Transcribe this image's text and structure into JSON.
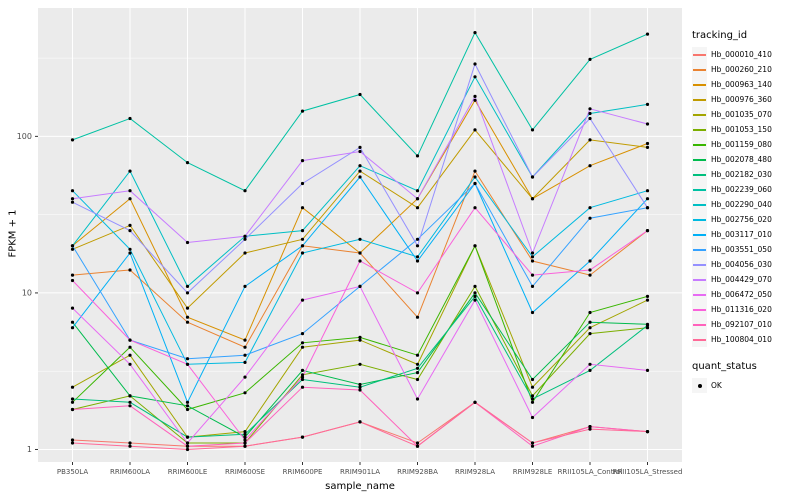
{
  "chart_data": {
    "type": "line",
    "title": "",
    "xlabel": "sample_name",
    "ylabel": "FPKM + 1",
    "y_scale": "log10",
    "y_ticks": [
      1,
      10,
      100
    ],
    "y_minor_ticks": [
      3.1623,
      31.623,
      316.23
    ],
    "ylim_log": [
      -0.08,
      2.82
    ],
    "grid": "on",
    "panel_bg": "#EBEBEB",
    "grid_color": "#FFFFFF",
    "point_color": "#000000",
    "legend_position": "right",
    "legend_titles": {
      "color": "tracking_id",
      "shape": "quant_status"
    },
    "quant_status_items": [
      {
        "label": "OK"
      }
    ],
    "categories": [
      "PB350LA",
      "RRIM600LA",
      "RRIM600LE",
      "RRIM600SE",
      "RRIM600PE",
      "RRIM901LA",
      "RRIM928BA",
      "RRIM928LA",
      "RRIM928LE",
      "RRII105LA_Control",
      "RRII105LA_Stressed"
    ],
    "series": [
      {
        "name": "Hb_000010_410",
        "color": "#F8766D",
        "values": [
          1.15,
          1.1,
          1.05,
          1.05,
          1.2,
          1.5,
          1.1,
          2.0,
          1.1,
          1.4,
          1.3
        ]
      },
      {
        "name": "Hb_000260_210",
        "color": "#EA8331",
        "values": [
          13,
          14,
          6.5,
          4.5,
          20,
          18,
          7,
          60,
          16,
          13,
          25
        ]
      },
      {
        "name": "Hb_000963_140",
        "color": "#D89000",
        "values": [
          20,
          40,
          7,
          5,
          35,
          18,
          40,
          170,
          40,
          65,
          90
        ]
      },
      {
        "name": "Hb_000976_360",
        "color": "#C09B00",
        "values": [
          19,
          27,
          8,
          18,
          22,
          60,
          35,
          110,
          40,
          95,
          85
        ]
      },
      {
        "name": "Hb_001035_070",
        "color": "#A3A500",
        "values": [
          2.5,
          4,
          1.2,
          1.3,
          4.5,
          5,
          3.5,
          20,
          2.5,
          6,
          9
        ]
      },
      {
        "name": "Hb_001053_150",
        "color": "#7CAE00",
        "values": [
          1.8,
          2.2,
          1.1,
          1.1,
          3,
          3.5,
          2.8,
          11,
          2.2,
          5.5,
          6
        ]
      },
      {
        "name": "Hb_001159_080",
        "color": "#39B600",
        "values": [
          2.0,
          4.5,
          1.8,
          2.3,
          4.8,
          5.2,
          4.0,
          20,
          2.0,
          7.5,
          9.5
        ]
      },
      {
        "name": "Hb_002078_480",
        "color": "#00BB4E",
        "values": [
          6.5,
          2.2,
          1.9,
          1.2,
          3.2,
          2.6,
          3.1,
          10,
          2.8,
          6.5,
          6.3
        ]
      },
      {
        "name": "Hb_002182_030",
        "color": "#00BF7D",
        "values": [
          2.1,
          2.0,
          1.2,
          1.25,
          2.8,
          2.5,
          3.3,
          9.5,
          2.1,
          3.2,
          6.2
        ]
      },
      {
        "name": "Hb_002239_060",
        "color": "#00C1A3",
        "values": [
          95,
          130,
          68,
          45,
          145,
          185,
          75,
          460,
          110,
          310,
          450
        ]
      },
      {
        "name": "Hb_002290_040",
        "color": "#00BFC4",
        "values": [
          20,
          60,
          11,
          23,
          25,
          65,
          45,
          240,
          55,
          140,
          160
        ]
      },
      {
        "name": "Hb_002756_020",
        "color": "#00BAE0",
        "values": [
          45,
          19,
          3.5,
          3.6,
          18,
          22,
          17,
          55,
          17,
          35,
          45
        ]
      },
      {
        "name": "Hb_003117_010",
        "color": "#00B0F6",
        "values": [
          6,
          18,
          2.0,
          11,
          20,
          55,
          16,
          50,
          7.5,
          16,
          40
        ]
      },
      {
        "name": "Hb_003551_050",
        "color": "#35A2FF",
        "values": [
          20,
          5,
          3.8,
          4,
          5.5,
          11,
          22,
          50,
          11,
          30,
          35
        ]
      },
      {
        "name": "Hb_004056_030",
        "color": "#9590FF",
        "values": [
          38,
          25,
          10,
          22,
          50,
          85,
          20,
          290,
          55,
          130,
          35
        ]
      },
      {
        "name": "Hb_004429_070",
        "color": "#C77CFF",
        "values": [
          40,
          45,
          21,
          23,
          70,
          80,
          40,
          180,
          18,
          150,
          120
        ]
      },
      {
        "name": "Hb_006472_050",
        "color": "#E76BF3",
        "values": [
          8,
          3.5,
          1.1,
          2.9,
          9,
          11,
          2.1,
          9,
          1.6,
          3.5,
          3.2
        ]
      },
      {
        "name": "Hb_011316_020",
        "color": "#FA62DB",
        "values": [
          12,
          5,
          3.5,
          1.15,
          2.9,
          16,
          10,
          35,
          13,
          14,
          25
        ]
      },
      {
        "name": "Hb_092107_010",
        "color": "#FF62BC",
        "values": [
          1.8,
          1.9,
          1.05,
          1.1,
          2.5,
          2.4,
          1.05,
          2.0,
          1.05,
          1.4,
          1.3
        ]
      },
      {
        "name": "Hb_100804_010",
        "color": "#FF6A98",
        "values": [
          1.1,
          1.05,
          1.0,
          1.05,
          1.2,
          1.5,
          1.05,
          2.0,
          1.1,
          1.35,
          1.3
        ]
      }
    ]
  }
}
